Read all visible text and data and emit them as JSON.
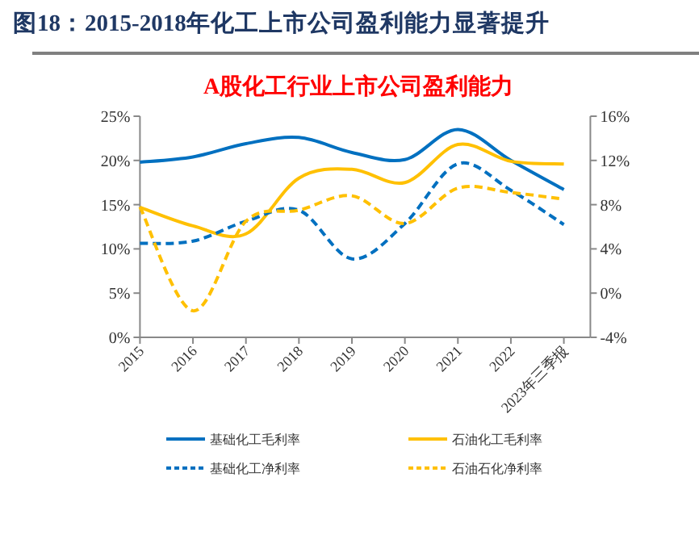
{
  "chart_data": {
    "type": "line",
    "title": "图18：2015-2018年化工上市公司盈利能力显著提升",
    "subtitle": "A股化工行业上市公司盈利能力",
    "categories": [
      "2015",
      "2016",
      "2017",
      "2018",
      "2019",
      "2020",
      "2021",
      "2022",
      "2023年三季报"
    ],
    "ylim": [
      0,
      25
    ],
    "yticks": [
      {
        "value": 0,
        "label": "0%"
      },
      {
        "value": 5,
        "label": "5%"
      },
      {
        "value": 10,
        "label": "10%"
      },
      {
        "value": 15,
        "label": "15%"
      },
      {
        "value": 20,
        "label": "20%"
      },
      {
        "value": 25,
        "label": "25%"
      }
    ],
    "y2lim": [
      -4,
      16
    ],
    "y2ticks": [
      {
        "value": -4,
        "label": "-4%"
      },
      {
        "value": 0,
        "label": "0%"
      },
      {
        "value": 4,
        "label": "4%"
      },
      {
        "value": 8,
        "label": "8%"
      },
      {
        "value": 12,
        "label": "12%"
      },
      {
        "value": 16,
        "label": "16%"
      }
    ],
    "legend": "bottom",
    "grid": false,
    "marker": "none",
    "series": [
      {
        "name": "基础化工毛利率",
        "color": "#0070c0",
        "line_style": "solid",
        "axis": "y",
        "values": [
          19.8,
          20.4,
          21.9,
          22.6,
          20.9,
          20.1,
          23.5,
          20.0,
          16.7
        ]
      },
      {
        "name": "石油化工毛利率",
        "color": "#ffc000",
        "line_style": "solid",
        "axis": "y",
        "values": [
          14.7,
          12.6,
          11.7,
          18.0,
          19.0,
          17.5,
          21.8,
          19.9,
          19.6
        ]
      },
      {
        "name": "基础化工净利率",
        "color": "#0070c0",
        "line_style": "dashed",
        "axis": "y2",
        "values": [
          4.5,
          4.7,
          6.5,
          7.5,
          3.1,
          6.3,
          11.7,
          9.3,
          6.2
        ]
      },
      {
        "name": "石油石化净利率",
        "color": "#ffc000",
        "line_style": "dashed",
        "axis": "y2",
        "values": [
          7.8,
          -1.6,
          6.5,
          7.5,
          8.8,
          6.3,
          9.5,
          9.1,
          8.5
        ]
      }
    ]
  }
}
